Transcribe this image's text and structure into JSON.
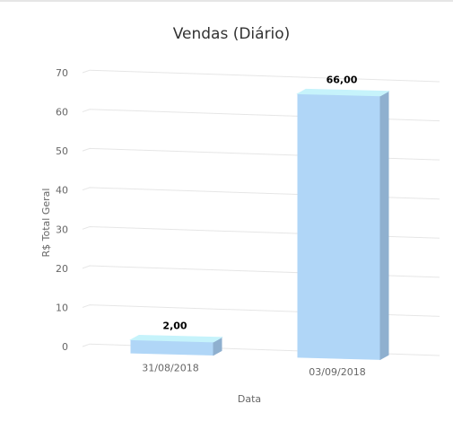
{
  "chart_data": {
    "type": "bar",
    "title": "Vendas (Diário)",
    "xlabel": "Data",
    "ylabel": "R$ Total Geral",
    "categories": [
      "31/08/2018",
      "03/09/2018"
    ],
    "values": [
      2,
      66
    ],
    "data_labels": [
      "2,00",
      "66,00"
    ],
    "yticks": [
      0,
      10,
      20,
      30,
      40,
      50,
      60,
      70
    ],
    "ylim": [
      0,
      70
    ],
    "grid": true,
    "legend": false,
    "style": "3d-column",
    "colors": {
      "bar_front": "#b0d6f7",
      "bar_top": "#c6f3fb",
      "bar_side": "#8fb0cf",
      "gridline": "#e6e6e6"
    }
  }
}
